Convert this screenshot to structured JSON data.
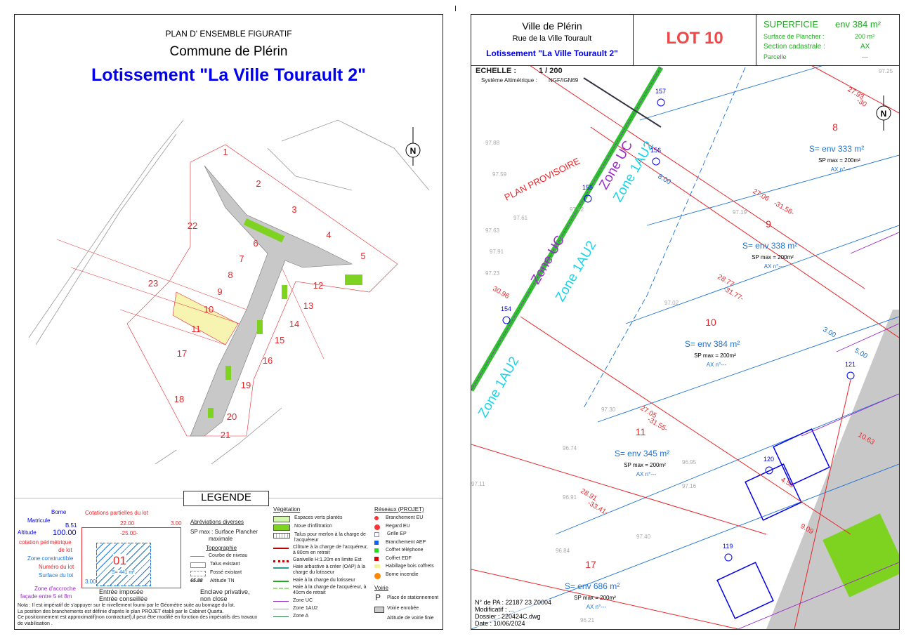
{
  "left": {
    "subtitle": "PLAN D' ENSEMBLE FIGURATIF",
    "commune": "Commune de Plérin",
    "title": "Lotissement \"La Ville Tourault 2\"",
    "lots": [
      "1",
      "2",
      "3",
      "4",
      "5",
      "6",
      "7",
      "8",
      "9",
      "10",
      "11",
      "12",
      "13",
      "14",
      "15",
      "16",
      "17",
      "18",
      "19",
      "20",
      "21",
      "22",
      "23"
    ],
    "legend": {
      "heading": "LEGENDE",
      "sample": {
        "borne": "Borne",
        "matricule": "Matricule",
        "matricule_val": "B.51",
        "altitude": "Altitude",
        "altitude_val": "100.00",
        "partielles": "Cotations partielles du lot",
        "dim1": "22.00",
        "dim2": "3.00",
        "perim": "-25.00-",
        "perim_label1": "cotation périmétrique",
        "perim_label2": "de lot",
        "zone": "Zone constructible",
        "numero": "Numéro du lot",
        "lot_num": "01",
        "surface": "Surface du lot",
        "surface_val": "S= 441 m²",
        "offset": "3.00",
        "accroche1": "Zone d'accroche",
        "accroche2": "façade entre 5 et 8m",
        "imposee": "Entrée imposée",
        "conseillee": "Entrée conseillée",
        "enclave1": "Enclave privative,",
        "enclave2": "non close"
      },
      "abbrev": {
        "heading": "Abréviations diverses",
        "sp1": "SP max : Surface Plancher",
        "sp2": "maximale"
      },
      "topo": {
        "heading": "Topographie",
        "items": [
          "Courbe de niveau",
          "Talus existant",
          "Fossé existant",
          "Altitude TN"
        ],
        "alt_sample": "65.88"
      },
      "vegetation": {
        "heading": "Végétation",
        "items": [
          "Espaces verts plantés",
          "Noue d'infiltration",
          "Talus pour merlon à la charge de l'acquéreur",
          "Clôture à la charge de l'acquéreur, à 80cm en retrait",
          "Ganivelle H:1.20m en limite Est",
          "Haie arbustive à créer (OAP) à la charge du lotisseur",
          "Haie à la charge du lotisseur",
          "Haie à la charge de l'acquéreur, à 40cm de retrait",
          "Zone UC",
          "Zone 1AU2",
          "Zone A"
        ]
      },
      "reseaux": {
        "heading": "Réseaux (PROJET)",
        "items": [
          "Branchement EU",
          "Regard EU",
          "Grille EP",
          "Branchement AEP",
          "Coffret téléphone",
          "Coffret EDF",
          "Habillage bois coffrets",
          "Borne incendie"
        ]
      },
      "voirie": {
        "heading": "Voirie",
        "items": [
          "Place de stationnement",
          "Voirie enrobée",
          "Altitude de voirie finie"
        ],
        "p": "P"
      },
      "nota": [
        "Nota : Il est impératif de s'appuyer sur le nivellement fourni par le Géomètre suite au bornage du lot.",
        "La position des branchements est définie d'après le plan PROJET établi par  le Cabinet Quarta.",
        "Ce positionnement est approximatif(non contractuel),il peut être modifié en fonction des impératifs des travaux de viabilisation ."
      ]
    }
  },
  "right": {
    "ville": "Ville de Plérin",
    "rue": "Rue de la Ville Tourault",
    "lotissement": "Lotissement \"La Ville Tourault 2\"",
    "lot": "LOT 10",
    "superficie_label": "SUPERFICIE",
    "superficie": "env 384 m²",
    "sp_label": "Surface de Plancher :",
    "sp": "200 m²",
    "section_label": "Section cadastrale :",
    "section": "AX",
    "parcelle_label": "Parcelle",
    "parcelle": "---",
    "echelle_label": "ECHELLE :",
    "echelle": "1 / 200",
    "alti_label": "Système Altimétrique :",
    "alti": "NGF/IGN69",
    "provisoire": "PLAN PROVISOIRE",
    "lots": [
      {
        "n": "8",
        "s": "S= env 333 m²"
      },
      {
        "n": "9",
        "s": "S= env 338 m²"
      },
      {
        "n": "10",
        "s": "S= env 384 m²"
      },
      {
        "n": "11",
        "s": "S= env 345 m²"
      },
      {
        "n": "17",
        "s": "S= env 686 m²"
      }
    ],
    "sp_max": "SP max = 200m²",
    "ax": "AX n°---",
    "points": [
      "157",
      "156",
      "155",
      "154",
      "121",
      "120",
      "119"
    ],
    "dims": [
      "27.93",
      "-30",
      "27.06",
      "-31.56-",
      "28.77",
      "-31.77-",
      "27.05",
      "-31.55-",
      "28.91",
      "-33.41-",
      "30.96",
      "8.00",
      "3.00",
      "5.00",
      "4.50",
      "9.09",
      "10.63"
    ],
    "zones": [
      "Zone UC",
      "Zone 1AU2"
    ],
    "alts": [
      "97.88",
      "97.59",
      "97.61",
      "97.62",
      "97.63",
      "97.91",
      "97.23",
      "97.19",
      "97.25",
      "97.02",
      "97.30",
      "96.74",
      "96.95",
      "97.16",
      "96.91",
      "97.40",
      "97.11",
      "96.84",
      "96.21"
    ],
    "footer": [
      "N° de PA : 22187 23 Z0004",
      "Modificatif : ...",
      "Dossier : 220424C.dwg",
      "Date : 10/06/2024"
    ]
  },
  "colors": {
    "red": "#e8262a",
    "blue": "#0000ee",
    "green": "#22aa22",
    "plot_blue": "#1e73d6",
    "purple": "#9a2bc8",
    "cyan": "#18d4e8",
    "lot_yellow": "#f7f3b0",
    "road": "#c8c8c8"
  }
}
